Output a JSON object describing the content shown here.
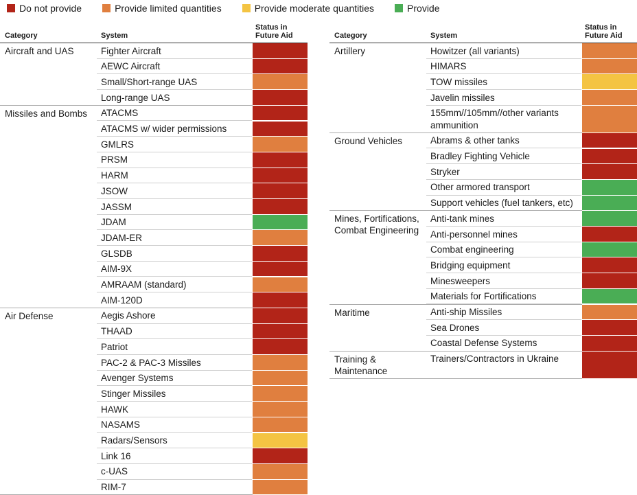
{
  "colors": {
    "do_not_provide": "#b22418",
    "limited": "#e07f3f",
    "moderate": "#f4c443",
    "provide": "#4aad55"
  },
  "legend": [
    {
      "key": "do_not_provide",
      "label": "Do not provide"
    },
    {
      "key": "limited",
      "label": "Provide limited quantities"
    },
    {
      "key": "moderate",
      "label": "Provide moderate quantities"
    },
    {
      "key": "provide",
      "label": "Provide"
    }
  ],
  "header": {
    "category": "Category",
    "system": "System",
    "status_line1": "Status in",
    "status_line2": "Future Aid"
  },
  "left_table": {
    "groups": [
      {
        "category": [
          "Aircraft and UAS"
        ],
        "rows": [
          {
            "system": [
              "Fighter Aircraft"
            ],
            "status": "do_not_provide"
          },
          {
            "system": [
              "AEWC Aircraft"
            ],
            "status": "do_not_provide"
          },
          {
            "system": [
              "Small/Short-range UAS"
            ],
            "status": "limited"
          },
          {
            "system": [
              "Long-range UAS"
            ],
            "status": "do_not_provide"
          }
        ]
      },
      {
        "category": [
          "Missiles and Bombs"
        ],
        "rows": [
          {
            "system": [
              "ATACMS"
            ],
            "status": "do_not_provide"
          },
          {
            "system": [
              "ATACMS w/ wider permissions"
            ],
            "status": "do_not_provide"
          },
          {
            "system": [
              "GMLRS"
            ],
            "status": "limited"
          },
          {
            "system": [
              "PRSM"
            ],
            "status": "do_not_provide"
          },
          {
            "system": [
              "HARM"
            ],
            "status": "do_not_provide"
          },
          {
            "system": [
              "JSOW"
            ],
            "status": "do_not_provide"
          },
          {
            "system": [
              "JASSM"
            ],
            "status": "do_not_provide"
          },
          {
            "system": [
              "JDAM"
            ],
            "status": "provide"
          },
          {
            "system": [
              "JDAM-ER"
            ],
            "status": "limited"
          },
          {
            "system": [
              "GLSDB"
            ],
            "status": "do_not_provide"
          },
          {
            "system": [
              "AIM-9X"
            ],
            "status": "do_not_provide"
          },
          {
            "system": [
              "AMRAAM (standard)"
            ],
            "status": "limited"
          },
          {
            "system": [
              "AIM-120D"
            ],
            "status": "do_not_provide"
          }
        ]
      },
      {
        "category": [
          "Air Defense"
        ],
        "rows": [
          {
            "system": [
              "Aegis Ashore"
            ],
            "status": "do_not_provide"
          },
          {
            "system": [
              "THAAD"
            ],
            "status": "do_not_provide"
          },
          {
            "system": [
              "Patriot"
            ],
            "status": "do_not_provide"
          },
          {
            "system": [
              "PAC-2 & PAC-3 Missiles"
            ],
            "status": "limited"
          },
          {
            "system": [
              "Avenger Systems"
            ],
            "status": "limited"
          },
          {
            "system": [
              "Stinger Missiles"
            ],
            "status": "limited"
          },
          {
            "system": [
              "HAWK"
            ],
            "status": "limited"
          },
          {
            "system": [
              "NASAMS"
            ],
            "status": "limited"
          },
          {
            "system": [
              "Radars/Sensors"
            ],
            "status": "moderate"
          },
          {
            "system": [
              "Link 16"
            ],
            "status": "do_not_provide"
          },
          {
            "system": [
              "c-UAS"
            ],
            "status": "limited"
          },
          {
            "system": [
              "RIM-7"
            ],
            "status": "limited"
          }
        ]
      }
    ]
  },
  "right_table": {
    "groups": [
      {
        "category": [
          "Artillery"
        ],
        "rows": [
          {
            "system": [
              "Howitzer (all variants)"
            ],
            "status": "limited"
          },
          {
            "system": [
              "HIMARS"
            ],
            "status": "limited"
          },
          {
            "system": [
              "TOW missiles"
            ],
            "status": "moderate"
          },
          {
            "system": [
              "Javelin missiles"
            ],
            "status": "limited"
          },
          {
            "system": [
              "155mm//105mm//other variants",
              "ammunition"
            ],
            "status": "limited"
          }
        ]
      },
      {
        "category": [
          "Ground Vehicles"
        ],
        "rows": [
          {
            "system": [
              "Abrams & other tanks"
            ],
            "status": "do_not_provide"
          },
          {
            "system": [
              "Bradley Fighting Vehicle"
            ],
            "status": "do_not_provide"
          },
          {
            "system": [
              "Stryker"
            ],
            "status": "do_not_provide"
          },
          {
            "system": [
              "Other armored transport"
            ],
            "status": "provide"
          },
          {
            "system": [
              "Support vehicles (fuel tankers, etc)"
            ],
            "status": "provide"
          }
        ]
      },
      {
        "category": [
          "Mines, Fortifications,",
          "Combat Engineering"
        ],
        "rows": [
          {
            "system": [
              "Anti-tank mines"
            ],
            "status": "provide"
          },
          {
            "system": [
              "Anti-personnel mines"
            ],
            "status": "do_not_provide"
          },
          {
            "system": [
              "Combat engineering"
            ],
            "status": "provide"
          },
          {
            "system": [
              "Bridging equipment"
            ],
            "status": "do_not_provide"
          },
          {
            "system": [
              "Minesweepers"
            ],
            "status": "do_not_provide"
          },
          {
            "system": [
              "Materials for Fortifications"
            ],
            "status": "provide"
          }
        ]
      },
      {
        "category": [
          "Maritime"
        ],
        "rows": [
          {
            "system": [
              "Anti-ship Missiles"
            ],
            "status": "limited"
          },
          {
            "system": [
              "Sea Drones"
            ],
            "status": "do_not_provide"
          },
          {
            "system": [
              "Coastal Defense Systems"
            ],
            "status": "do_not_provide"
          }
        ]
      },
      {
        "category": [
          "Training &",
          "Maintenance"
        ],
        "rows": [
          {
            "system": [
              "Trainers/Contractors in Ukraine"
            ],
            "status": "do_not_provide",
            "tall": true
          }
        ]
      }
    ]
  }
}
